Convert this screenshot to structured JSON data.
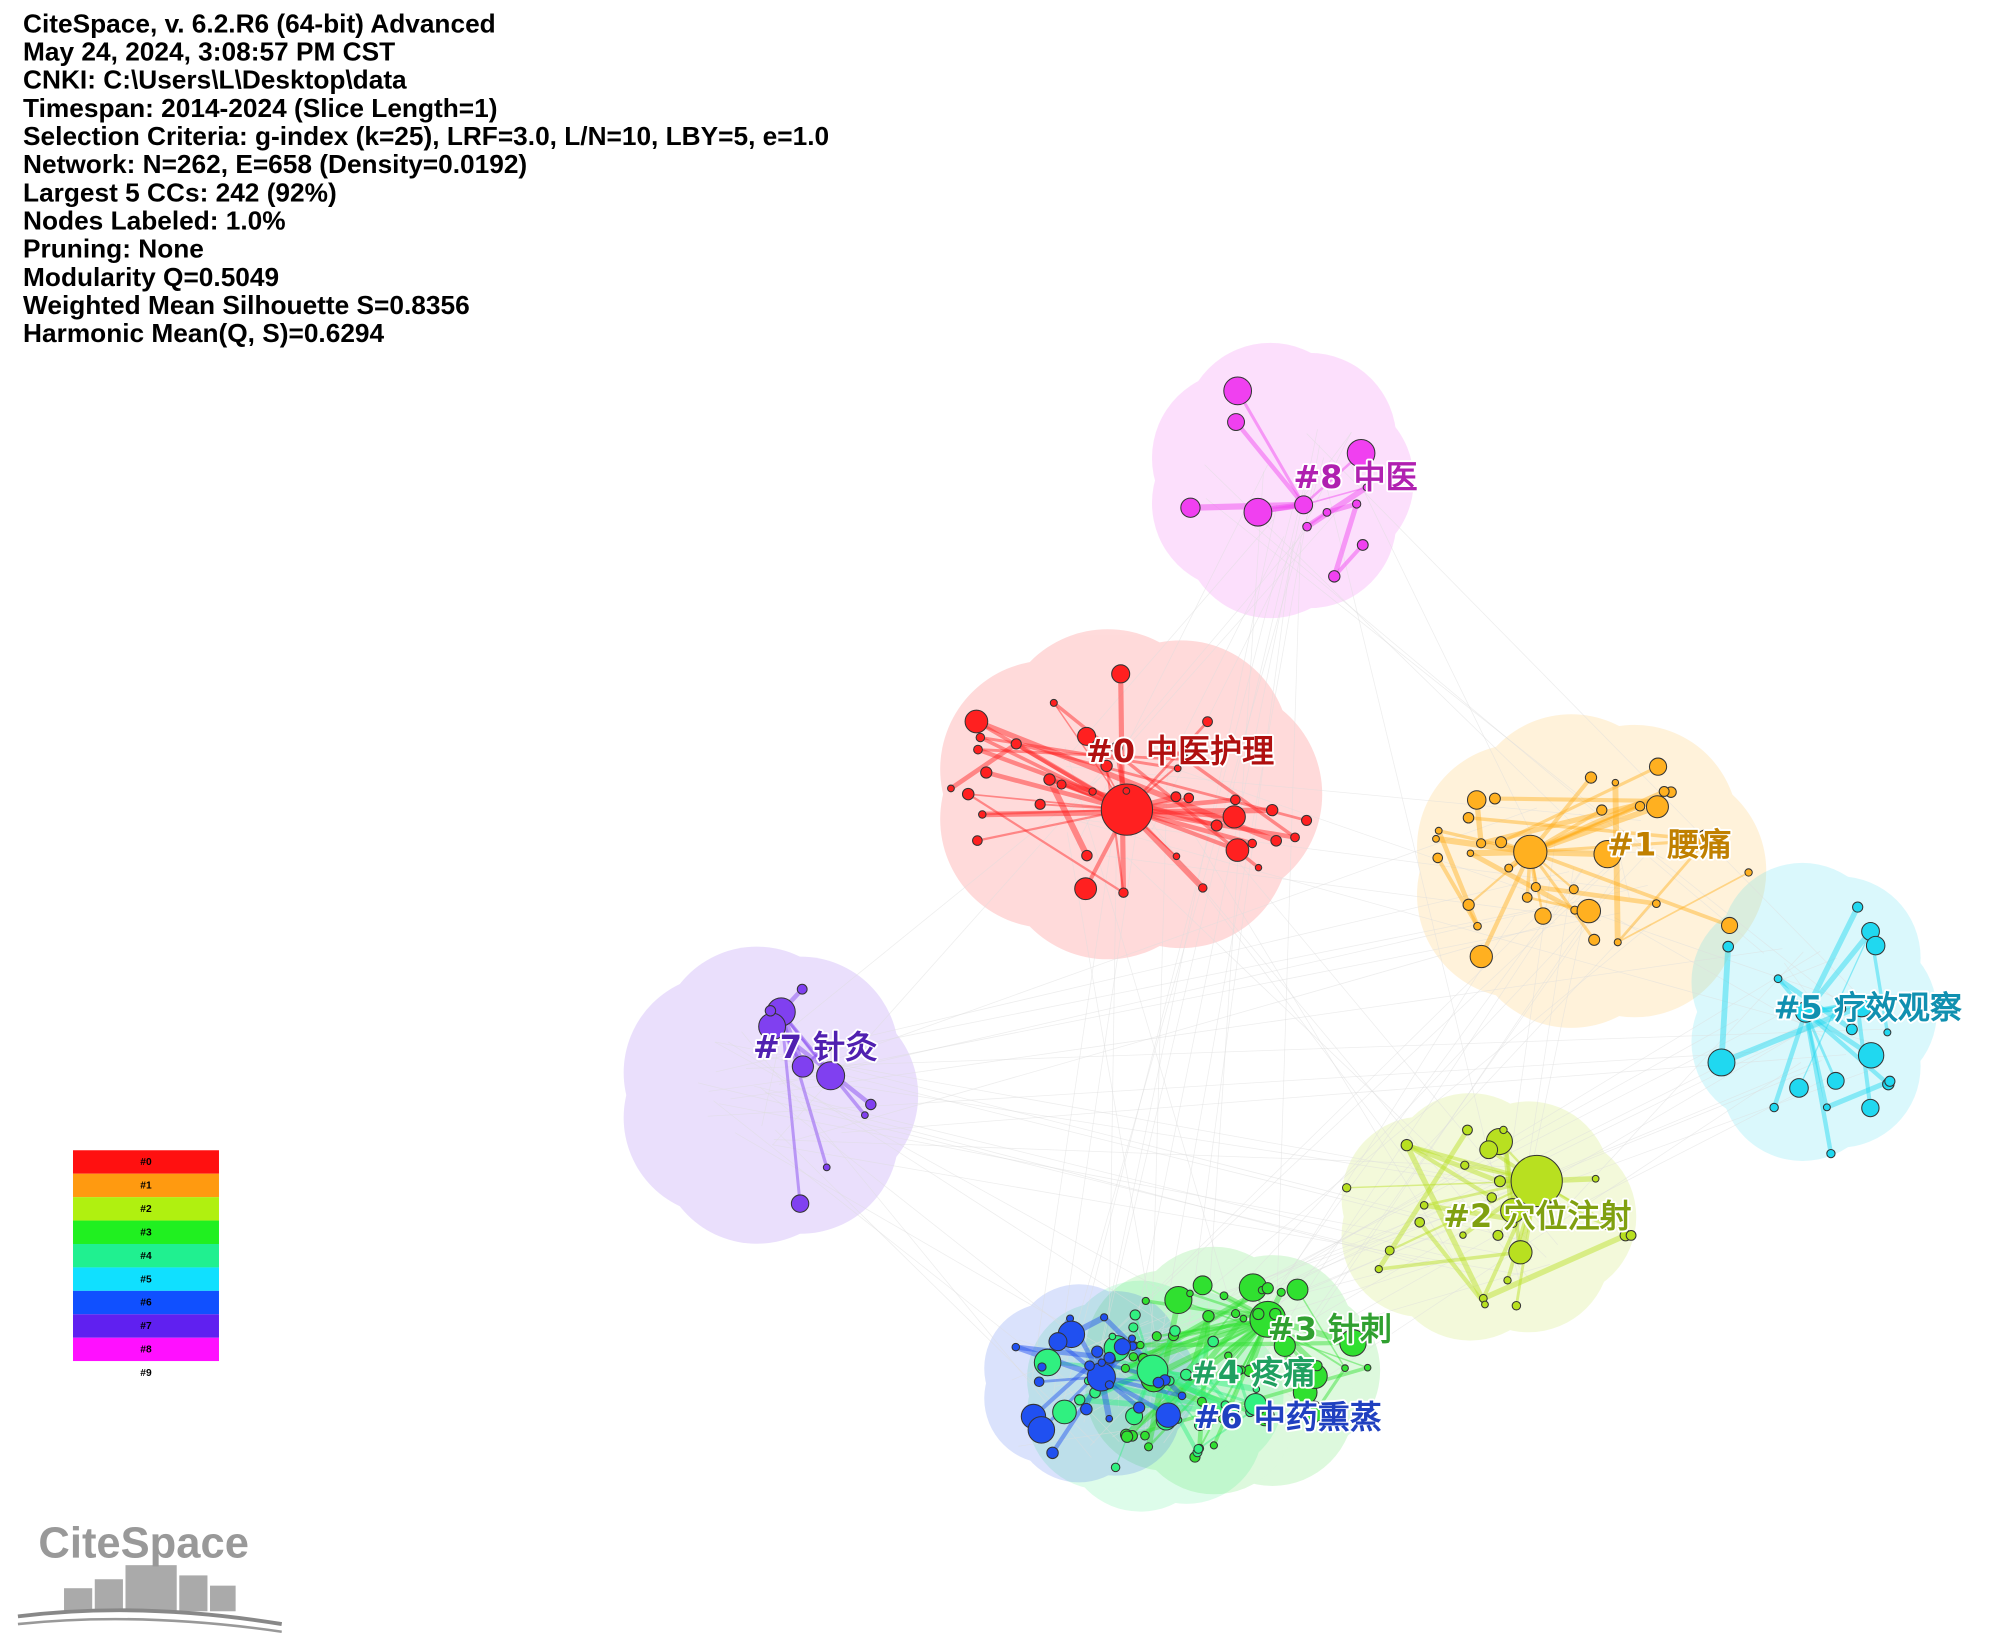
{
  "header": {
    "lines": [
      "CiteSpace, v. 6.2.R6 (64-bit) Advanced",
      "May 24, 2024, 3:08:57 PM CST",
      "CNKI: C:\\Users\\L\\Desktop\\data",
      "Timespan: 2014-2024 (Slice Length=1)",
      "Selection Criteria: g-index (k=25), LRF=3.0, L/N=10, LBY=5, e=1.0",
      "Network: N=262, E=658 (Density=0.0192)",
      "Largest 5 CCs: 242 (92%)",
      "Nodes Labeled: 1.0%",
      "Pruning: None",
      "Modularity Q=0.5049",
      "Weighted Mean Silhouette S=0.8356",
      "Harmonic Mean(Q, S)=0.6294"
    ]
  },
  "clusters": [
    {
      "label": "#0 中医护理"
    },
    {
      "label": "#1 腰痛"
    },
    {
      "label": "#2 穴位注射"
    },
    {
      "label": "#3 针刺"
    },
    {
      "label": "#4 疼痛"
    },
    {
      "label": "#5 疗效观察"
    },
    {
      "label": "#6 中药熏蒸"
    },
    {
      "label": "#7 针灸"
    },
    {
      "label": "#8 中医"
    }
  ],
  "legend": {
    "items": [
      "#0",
      "#1",
      "#2",
      "#3",
      "#4",
      "#5",
      "#6",
      "#7",
      "#8",
      "#9"
    ]
  },
  "logo": {
    "text": "CiteSpace"
  }
}
